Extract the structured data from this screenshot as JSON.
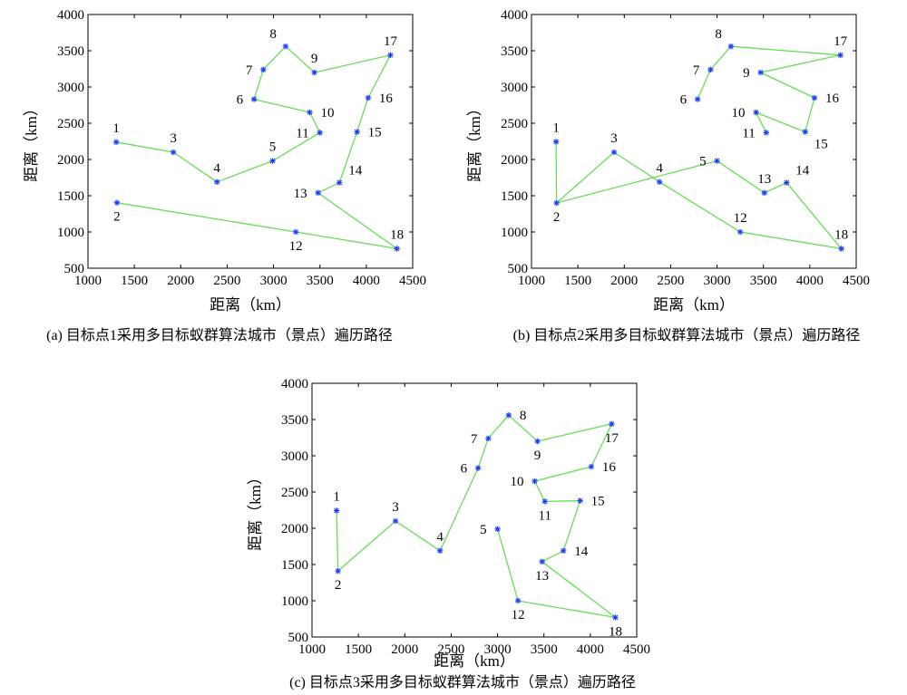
{
  "colors": {
    "route": "#66dd55",
    "marker": "#1a3cff"
  },
  "chart_data": [
    {
      "type": "line",
      "caption": "(a) 目标点1采用多目标蚁群算法城市（景点）遍历路径",
      "xlabel": "距离（km）",
      "ylabel": "距离（km）",
      "xlim": [
        1000,
        4500
      ],
      "ylim": [
        500,
        4000
      ],
      "xticks": [
        1000,
        1500,
        2000,
        2500,
        3000,
        3500,
        4000,
        4500
      ],
      "yticks": [
        500,
        1000,
        1500,
        2000,
        2500,
        3000,
        3500,
        4000
      ],
      "points": [
        {
          "id": "1",
          "x": 1304,
          "y": 2240,
          "lpos": "n"
        },
        {
          "id": "2",
          "x": 1312,
          "y": 1404,
          "lpos": "s"
        },
        {
          "id": "3",
          "x": 1920,
          "y": 2100,
          "lpos": "n"
        },
        {
          "id": "4",
          "x": 2390,
          "y": 1690,
          "lpos": "n"
        },
        {
          "id": "5",
          "x": 2990,
          "y": 1980,
          "lpos": "n"
        },
        {
          "id": "6",
          "x": 2790,
          "y": 2830,
          "lpos": "w"
        },
        {
          "id": "7",
          "x": 2890,
          "y": 3240,
          "lpos": "w"
        },
        {
          "id": "8",
          "x": 3130,
          "y": 3560,
          "lpos": "nw"
        },
        {
          "id": "9",
          "x": 3440,
          "y": 3200,
          "lpos": "n"
        },
        {
          "id": "10",
          "x": 3390,
          "y": 2650,
          "lpos": "e"
        },
        {
          "id": "11",
          "x": 3500,
          "y": 2370,
          "lpos": "w"
        },
        {
          "id": "12",
          "x": 3240,
          "y": 1000,
          "lpos": "s"
        },
        {
          "id": "13",
          "x": 3480,
          "y": 1540,
          "lpos": "w"
        },
        {
          "id": "14",
          "x": 3710,
          "y": 1680,
          "lpos": "ne"
        },
        {
          "id": "15",
          "x": 3900,
          "y": 2380,
          "lpos": "e"
        },
        {
          "id": "16",
          "x": 4020,
          "y": 2850,
          "lpos": "e"
        },
        {
          "id": "17",
          "x": 4260,
          "y": 3440,
          "lpos": "n"
        },
        {
          "id": "18",
          "x": 4330,
          "y": 770,
          "lpos": "n"
        }
      ],
      "route": [
        "1",
        "3",
        "4",
        "5",
        "11",
        "10",
        "6",
        "7",
        "8",
        "9",
        "17",
        "16",
        "15",
        "14",
        "13",
        "18",
        "12",
        "2"
      ]
    },
    {
      "type": "line",
      "caption": "(b) 目标点2采用多目标蚁群算法城市（景点）遍历路径",
      "xlabel": "距离（km）",
      "ylabel": "距离（km）",
      "xlim": [
        1000,
        4500
      ],
      "ylim": [
        500,
        4000
      ],
      "xticks": [
        1000,
        1500,
        2000,
        2500,
        3000,
        3500,
        4000,
        4500
      ],
      "yticks": [
        500,
        1000,
        1500,
        2000,
        2500,
        3000,
        3500,
        4000
      ],
      "points": [
        {
          "id": "1",
          "x": 1265,
          "y": 2245,
          "lpos": "n"
        },
        {
          "id": "2",
          "x": 1270,
          "y": 1400,
          "lpos": "s"
        },
        {
          "id": "3",
          "x": 1890,
          "y": 2100,
          "lpos": "n"
        },
        {
          "id": "4",
          "x": 2380,
          "y": 1690,
          "lpos": "n"
        },
        {
          "id": "5",
          "x": 3000,
          "y": 1980,
          "lpos": "w"
        },
        {
          "id": "6",
          "x": 2790,
          "y": 2830,
          "lpos": "w"
        },
        {
          "id": "7",
          "x": 2930,
          "y": 3240,
          "lpos": "w"
        },
        {
          "id": "8",
          "x": 3150,
          "y": 3560,
          "lpos": "nw"
        },
        {
          "id": "9",
          "x": 3470,
          "y": 3200,
          "lpos": "w"
        },
        {
          "id": "10",
          "x": 3420,
          "y": 2650,
          "lpos": "w"
        },
        {
          "id": "11",
          "x": 3530,
          "y": 2370,
          "lpos": "w"
        },
        {
          "id": "12",
          "x": 3250,
          "y": 1000,
          "lpos": "n"
        },
        {
          "id": "13",
          "x": 3510,
          "y": 1540,
          "lpos": "n"
        },
        {
          "id": "14",
          "x": 3750,
          "y": 1680,
          "lpos": "ne"
        },
        {
          "id": "15",
          "x": 3950,
          "y": 2380,
          "lpos": "se"
        },
        {
          "id": "16",
          "x": 4050,
          "y": 2850,
          "lpos": "e"
        },
        {
          "id": "17",
          "x": 4330,
          "y": 3440,
          "lpos": "n"
        },
        {
          "id": "18",
          "x": 4340,
          "y": 770,
          "lpos": "n"
        }
      ],
      "route": [
        "1",
        "2",
        "3",
        "4",
        "12",
        "18",
        "14",
        "13",
        "5",
        "2"
      ],
      "route_extra": [
        [
          "6",
          "7",
          "8",
          "17",
          "9",
          "16",
          "15",
          "10",
          "11"
        ]
      ]
    },
    {
      "type": "line",
      "caption": "(c) 目标点3采用多目标蚁群算法城市（景点）遍历路径",
      "xlabel": "距离（km）",
      "ylabel": "距离（km）",
      "xlim": [
        1000,
        4500
      ],
      "ylim": [
        500,
        4000
      ],
      "xticks": [
        1000,
        1500,
        2000,
        2500,
        3000,
        3500,
        4000,
        4500
      ],
      "yticks": [
        500,
        1000,
        1500,
        2000,
        2500,
        3000,
        3500,
        4000
      ],
      "points": [
        {
          "id": "1",
          "x": 1265,
          "y": 2245,
          "lpos": "n"
        },
        {
          "id": "2",
          "x": 1280,
          "y": 1410,
          "lpos": "s"
        },
        {
          "id": "3",
          "x": 1900,
          "y": 2100,
          "lpos": "n"
        },
        {
          "id": "4",
          "x": 2380,
          "y": 1690,
          "lpos": "n"
        },
        {
          "id": "5",
          "x": 3000,
          "y": 1990,
          "lpos": "w"
        },
        {
          "id": "6",
          "x": 2790,
          "y": 2830,
          "lpos": "w"
        },
        {
          "id": "7",
          "x": 2900,
          "y": 3240,
          "lpos": "w"
        },
        {
          "id": "8",
          "x": 3120,
          "y": 3560,
          "lpos": "e"
        },
        {
          "id": "9",
          "x": 3430,
          "y": 3200,
          "lpos": "s"
        },
        {
          "id": "10",
          "x": 3400,
          "y": 2650,
          "lpos": "w"
        },
        {
          "id": "11",
          "x": 3510,
          "y": 2370,
          "lpos": "s"
        },
        {
          "id": "12",
          "x": 3220,
          "y": 1000,
          "lpos": "s"
        },
        {
          "id": "13",
          "x": 3480,
          "y": 1540,
          "lpos": "s"
        },
        {
          "id": "14",
          "x": 3710,
          "y": 1690,
          "lpos": "e"
        },
        {
          "id": "15",
          "x": 3890,
          "y": 2380,
          "lpos": "e"
        },
        {
          "id": "16",
          "x": 4010,
          "y": 2850,
          "lpos": "e"
        },
        {
          "id": "17",
          "x": 4230,
          "y": 3440,
          "lpos": "s"
        },
        {
          "id": "18",
          "x": 4270,
          "y": 770,
          "lpos": "s"
        }
      ],
      "route": [
        "1",
        "2",
        "3",
        "4",
        "6",
        "7",
        "8",
        "9",
        "17",
        "16",
        "10",
        "11",
        "15",
        "14",
        "13",
        "18",
        "12",
        "5"
      ]
    }
  ]
}
